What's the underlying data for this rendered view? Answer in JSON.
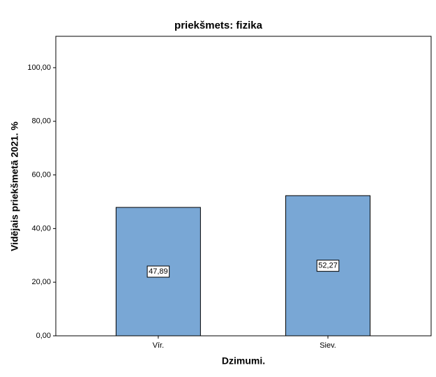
{
  "chart_data": {
    "type": "bar",
    "title": "priekšmets: fizika",
    "x_label": "Dzimumi.",
    "y_label": "Vidējais priekšmetā 2021. %",
    "categories": [
      "Vīr.",
      "Siev."
    ],
    "values": [
      47.89,
      52.27
    ],
    "value_labels": [
      "47,89",
      "52,27"
    ],
    "color": "#79a7d5",
    "ylim": [
      0,
      111.7
    ],
    "yticks": [
      {
        "value": 0,
        "label": "0,00"
      },
      {
        "value": 20,
        "label": "20,00"
      },
      {
        "value": 40,
        "label": "40,00"
      },
      {
        "value": 60,
        "label": "60,00"
      },
      {
        "value": 80,
        "label": "80,00"
      },
      {
        "value": 100,
        "label": "100,00"
      }
    ],
    "grid": false
  }
}
